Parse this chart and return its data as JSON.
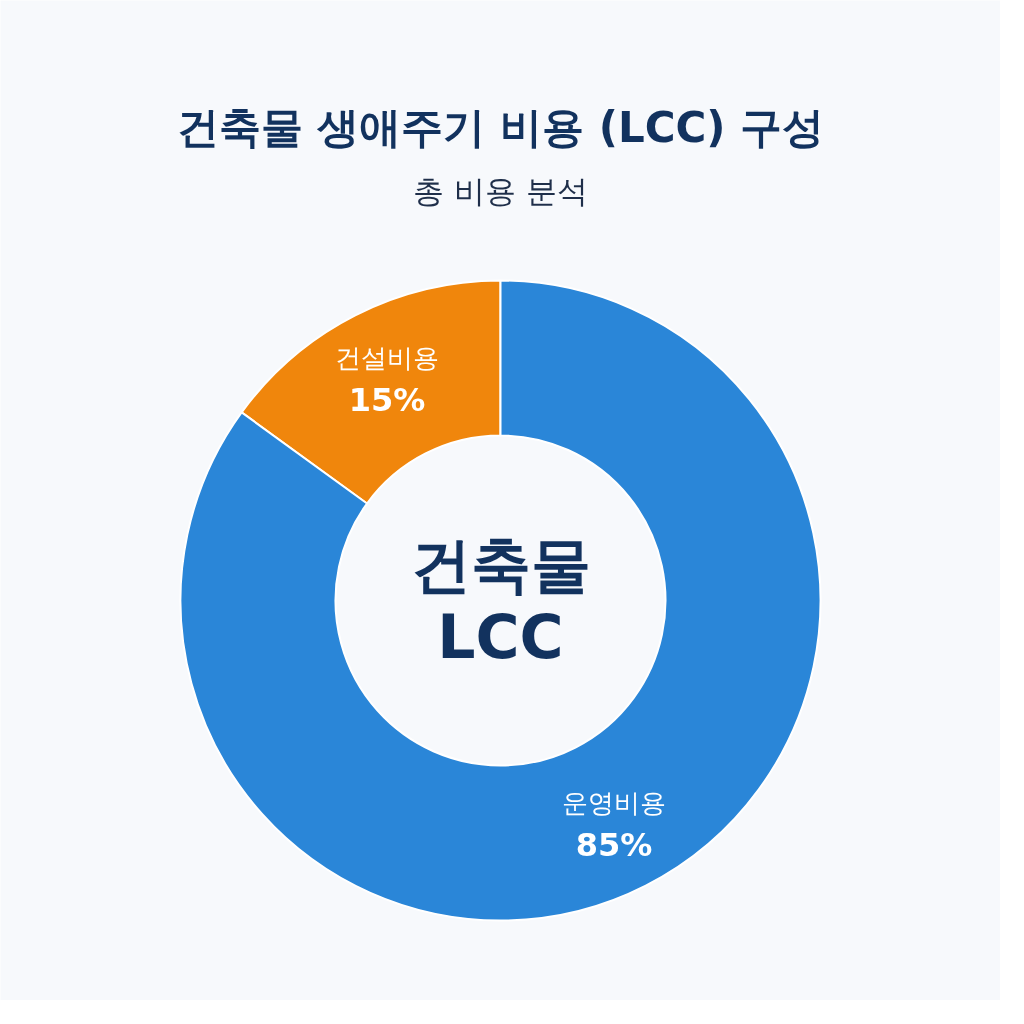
{
  "chart_data": {
    "type": "donut",
    "title": "건축물 생애주기 비용 (LCC) 구성",
    "subtitle": "총 비용 분석",
    "categories": [
      "건설비용",
      "운영비용"
    ],
    "values": [
      15,
      85
    ],
    "value_labels": [
      "15%",
      "85%"
    ],
    "colors": [
      "#f0860c",
      "#2a86d8"
    ],
    "annotations": [
      "건축물 LCC"
    ]
  }
}
